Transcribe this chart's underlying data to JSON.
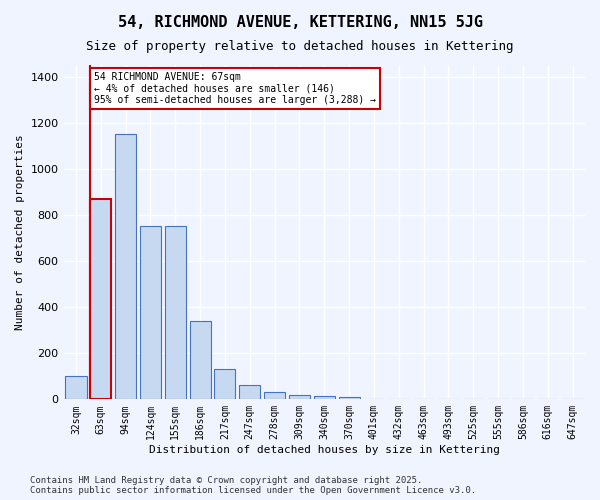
{
  "title": "54, RICHMOND AVENUE, KETTERING, NN15 5JG",
  "subtitle": "Size of property relative to detached houses in Kettering",
  "xlabel": "Distribution of detached houses by size in Kettering",
  "ylabel": "Number of detached properties",
  "bar_labels": [
    "32sqm",
    "63sqm",
    "94sqm",
    "124sqm",
    "155sqm",
    "186sqm",
    "217sqm",
    "247sqm",
    "278sqm",
    "309sqm",
    "340sqm",
    "370sqm",
    "401sqm",
    "432sqm",
    "463sqm",
    "493sqm",
    "525sqm",
    "555sqm",
    "586sqm",
    "616sqm",
    "647sqm"
  ],
  "bar_values": [
    100,
    870,
    1150,
    750,
    750,
    340,
    130,
    60,
    30,
    20,
    15,
    10,
    0,
    0,
    0,
    0,
    0,
    0,
    0,
    0,
    0
  ],
  "bar_color": "#c6d9f0",
  "bar_edge_color": "#4472c4",
  "highlight_bar_index": 1,
  "highlight_line_color": "#cc0000",
  "annotation_text": "54 RICHMOND AVENUE: 67sqm\n← 4% of detached houses are smaller (146)\n95% of semi-detached houses are larger (3,288) →",
  "annotation_box_color": "#cc0000",
  "ylim": [
    0,
    1450
  ],
  "yticks": [
    0,
    200,
    400,
    600,
    800,
    1000,
    1200,
    1400
  ],
  "bg_color": "#f0f4ff",
  "grid_color": "#ffffff",
  "footer": "Contains HM Land Registry data © Crown copyright and database right 2025.\nContains public sector information licensed under the Open Government Licence v3.0."
}
